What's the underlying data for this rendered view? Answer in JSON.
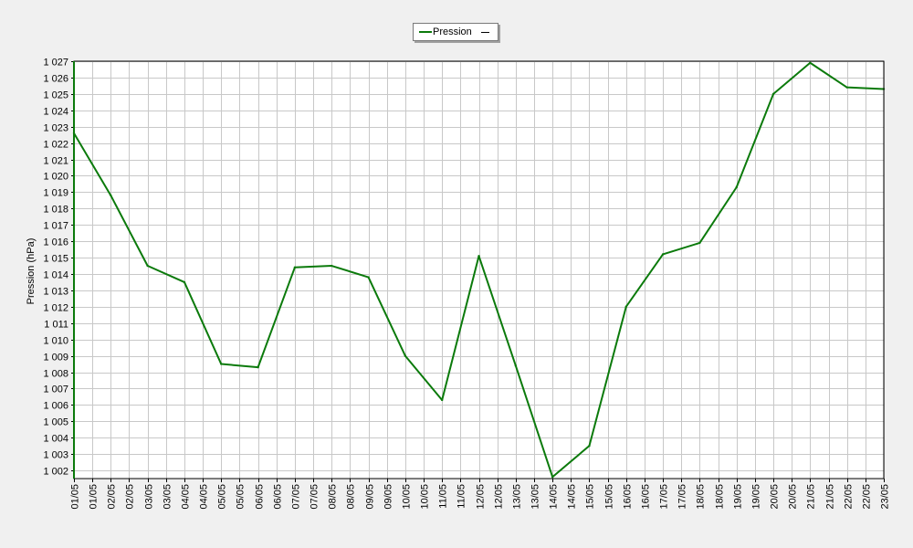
{
  "chart_data": {
    "type": "line",
    "title": "",
    "xlabel": "",
    "ylabel": "Pression (hPa)",
    "legend": {
      "position": "top-center",
      "entries": [
        "Pression"
      ]
    },
    "grid": true,
    "ylim": [
      1001.5,
      1027
    ],
    "yticks": [
      1002,
      1003,
      1004,
      1005,
      1006,
      1007,
      1008,
      1009,
      1010,
      1011,
      1012,
      1013,
      1014,
      1015,
      1016,
      1017,
      1018,
      1019,
      1020,
      1021,
      1022,
      1023,
      1024,
      1025,
      1026,
      1027
    ],
    "ytick_labels": [
      "1 002",
      "1 003",
      "1 004",
      "1 005",
      "1 006",
      "1 007",
      "1 008",
      "1 009",
      "1 010",
      "1 011",
      "1 012",
      "1 013",
      "1 014",
      "1 015",
      "1 016",
      "1 017",
      "1 018",
      "1 019",
      "1 020",
      "1 021",
      "1 022",
      "1 023",
      "1 024",
      "1 025",
      "1 026",
      "1 027"
    ],
    "categories": [
      "01/05",
      "01/05",
      "02/05",
      "02/05",
      "03/05",
      "03/05",
      "04/05",
      "04/05",
      "05/05",
      "05/05",
      "06/05",
      "06/05",
      "07/05",
      "07/05",
      "08/05",
      "08/05",
      "09/05",
      "09/05",
      "10/05",
      "10/05",
      "11/05",
      "11/05",
      "12/05",
      "12/05",
      "13/05",
      "13/05",
      "14/05",
      "14/05",
      "15/05",
      "15/05",
      "16/05",
      "16/05",
      "17/05",
      "17/05",
      "18/05",
      "18/05",
      "19/05",
      "19/05",
      "20/05",
      "20/05",
      "21/05",
      "21/05",
      "22/05",
      "22/05",
      "23/05"
    ],
    "series": [
      {
        "name": "Pression",
        "color": "#0b7a0b",
        "x": [
          "01/05",
          "02/05",
          "03/05",
          "04/05",
          "05/05",
          "06/05",
          "07/05",
          "08/05",
          "09/05",
          "10/05",
          "11/05",
          "12/05",
          "13/05",
          "14/05",
          "15/05",
          "16/05",
          "17/05",
          "18/05",
          "19/05",
          "20/05",
          "21/05",
          "22/05",
          "23/05"
        ],
        "values": [
          1022.6,
          1018.8,
          1014.5,
          1013.5,
          1008.5,
          1008.3,
          1014.4,
          1014.5,
          1013.8,
          1009.0,
          1006.3,
          1015.1,
          1008.4,
          1001.6,
          1003.5,
          1012.0,
          1015.2,
          1015.9,
          1019.3,
          1025.0,
          1026.9,
          1025.4,
          1025.3
        ]
      }
    ]
  }
}
